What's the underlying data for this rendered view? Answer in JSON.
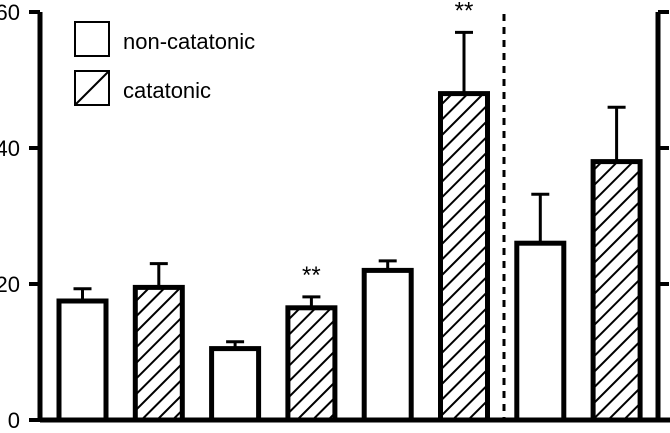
{
  "chart_data": {
    "type": "bar",
    "ylim": [
      0,
      60
    ],
    "yticks": [
      0,
      20,
      40,
      60
    ],
    "ytick_labels": [
      "0",
      "20",
      "40",
      "60"
    ],
    "grid": false,
    "legend_position": "top-left",
    "legend": [
      {
        "key": "non_catatonic",
        "label": "non-catatonic",
        "pattern": "none"
      },
      {
        "key": "catatonic",
        "label": "catatonic",
        "pattern": "hatch"
      }
    ],
    "bars": [
      {
        "group": "non_catatonic",
        "value": 17.5,
        "error": 1.8,
        "annotation": ""
      },
      {
        "group": "catatonic",
        "value": 19.5,
        "error": 3.5,
        "annotation": ""
      },
      {
        "group": "non_catatonic",
        "value": 10.5,
        "error": 1.0,
        "annotation": ""
      },
      {
        "group": "catatonic",
        "value": 16.5,
        "error": 1.6,
        "annotation": "**"
      },
      {
        "group": "non_catatonic",
        "value": 22.0,
        "error": 1.4,
        "annotation": ""
      },
      {
        "group": "catatonic",
        "value": 48.0,
        "error": 9.0,
        "annotation": "**"
      },
      {
        "group": "non_catatonic",
        "value": 26.0,
        "error": 7.2,
        "annotation": ""
      },
      {
        "group": "catatonic",
        "value": 38.0,
        "error": 8.0,
        "annotation": ""
      }
    ],
    "divider_after_bar": 6
  },
  "colors": {
    "ink": "#000000",
    "background": "#ffffff"
  }
}
